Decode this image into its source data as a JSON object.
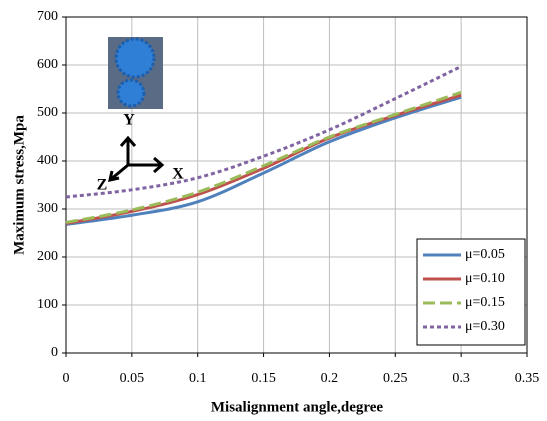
{
  "chart_data": {
    "type": "line",
    "x_label": "Misalignment angle,degree",
    "y_label": "Maximum stress,Mpa",
    "x": [
      0,
      0.05,
      0.1,
      0.15,
      0.2,
      0.25,
      0.3
    ],
    "series": [
      {
        "name": "μ=0.05",
        "color": "#4f81bd",
        "dash": "none",
        "values": [
          268,
          287,
          315,
          375,
          440,
          490,
          533
        ]
      },
      {
        "name": "μ=0.10",
        "color": "#c0504d",
        "dash": "none",
        "values": [
          270,
          295,
          330,
          385,
          448,
          495,
          537
        ]
      },
      {
        "name": "μ=0.15",
        "color": "#9bbb59",
        "dash": "12 5",
        "values": [
          272,
          298,
          335,
          390,
          450,
          497,
          543
        ]
      },
      {
        "name": "μ=0.30",
        "color": "#8064a2",
        "dash": "4 3",
        "values": [
          325,
          340,
          365,
          410,
          465,
          530,
          597
        ]
      }
    ],
    "xlim": [
      0,
      0.35
    ],
    "xticks": [
      0,
      0.05,
      0.1,
      0.15,
      0.2,
      0.25,
      0.3,
      0.35
    ],
    "ylim": [
      0,
      700
    ],
    "yticks": [
      0,
      100,
      200,
      300,
      400,
      500,
      600,
      700
    ],
    "grid": true,
    "legend": "lower right",
    "annotations": [
      "Y",
      "X",
      "Z"
    ]
  }
}
